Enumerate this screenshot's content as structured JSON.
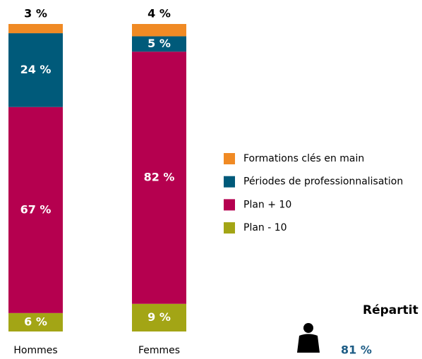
{
  "chart_data": {
    "type": "stacked_bar",
    "categories": [
      "Hommes",
      "Femmes"
    ],
    "ylim": [
      0,
      100
    ],
    "series": [
      {
        "name": "Formations clés en main",
        "color": "#f08a24",
        "values": [
          3,
          4
        ],
        "value_labels": [
          "3 %",
          "4 %"
        ]
      },
      {
        "name": "Périodes de professionnalisation",
        "color": "#005a7a",
        "values": [
          24,
          5
        ],
        "value_labels": [
          "24 %",
          "5 %"
        ]
      },
      {
        "name": "Plan + 10",
        "color": "#b5004f",
        "values": [
          67,
          82
        ],
        "value_labels": [
          "67 %",
          "82 %"
        ]
      },
      {
        "name": "Plan - 10",
        "color": "#a3a515",
        "values": [
          6,
          9
        ],
        "value_labels": [
          "6 %",
          "9 %"
        ]
      }
    ],
    "annotations": [
      "Répartit",
      "81 %"
    ]
  }
}
